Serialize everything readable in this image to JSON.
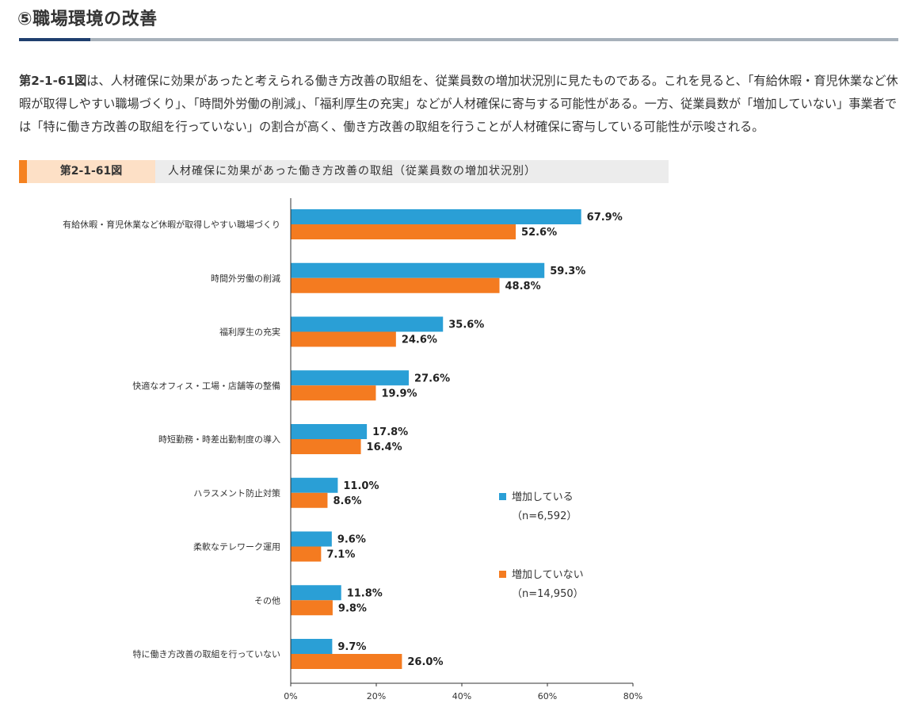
{
  "page": {
    "section_title": "⑤職場環境の改善",
    "paragraph_ref": "第2-1-61図",
    "paragraph_text": "は、人材確保に効果があったと考えられる働き方改善の取組を、従業員数の増加状況別に見たものである。これを見ると、「有給休暇・育児休業など休暇が取得しやすい職場づくり」、「時間外労働の削減」、「福利厚生の充実」などが人材確保に寄与する可能性がある。一方、従業員数が「増加していない」事業者では「特に働き方改善の取組を行っていない」の割合が高く、働き方改善の取組を行うことが人材確保に寄与している可能性が示唆される。",
    "figure_number": "第2-1-61図",
    "figure_title": "人材確保に効果があった働き方改善の取組（従業員数の増加状況別）"
  },
  "colors": {
    "series_1": "#2a9fd6",
    "series_2": "#f47b20",
    "accent": "#f58220",
    "rule_dark": "#1f3e6e",
    "rule_light": "#a7b1bb"
  },
  "chart_data": {
    "type": "bar",
    "orientation": "horizontal",
    "categories": [
      "有給休暇・育児休業など休暇が取得しやすい職場づくり",
      "時間外労働の削減",
      "福利厚生の充実",
      "快適なオフィス・工場・店舗等の整備",
      "時短勤務・時差出勤制度の導入",
      "ハラスメント防止対策",
      "柔軟なテレワーク運用",
      "その他",
      "特に働き方改善の取組を行っていない"
    ],
    "series": [
      {
        "name": "増加している",
        "n_label": "（n=6,592）",
        "values": [
          67.9,
          59.3,
          35.6,
          27.6,
          17.8,
          11.0,
          9.6,
          11.8,
          9.7
        ],
        "labels": [
          "67.9%",
          "59.3%",
          "35.6%",
          "27.6%",
          "17.8%",
          "11.0%",
          "9.6%",
          "11.8%",
          "9.7%"
        ]
      },
      {
        "name": "増加していない",
        "n_label": "（n=14,950）",
        "values": [
          52.6,
          48.8,
          24.6,
          19.9,
          16.4,
          8.6,
          7.1,
          9.8,
          26.0
        ],
        "labels": [
          "52.6%",
          "48.8%",
          "24.6%",
          "19.9%",
          "16.4%",
          "8.6%",
          "7.1%",
          "9.8%",
          "26.0%"
        ]
      }
    ],
    "xlim": [
      0,
      80
    ],
    "xticks": [
      0,
      20,
      40,
      60,
      80
    ],
    "xtick_labels": [
      "0%",
      "20%",
      "40%",
      "60%",
      "80%"
    ],
    "grid": false,
    "legend_position": "right"
  }
}
